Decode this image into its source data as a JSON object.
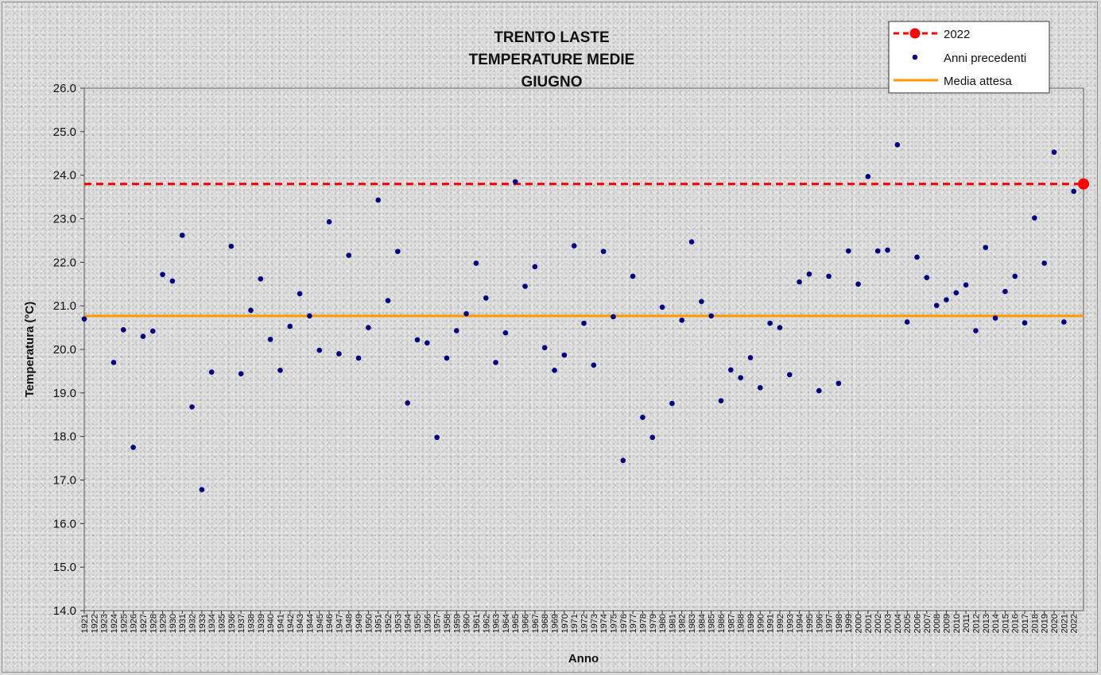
{
  "chart_data": {
    "type": "scatter",
    "title_lines": [
      "TRENTO LASTE",
      "TEMPERATURE MEDIE",
      "GIUGNO"
    ],
    "xlabel": "Anno",
    "ylabel": "Temperatura (°C)",
    "ylim": [
      14.0,
      26.0
    ],
    "y_ticks": [
      "14.0",
      "15.0",
      "16.0",
      "17.0",
      "18.0",
      "19.0",
      "20.0",
      "21.0",
      "22.0",
      "23.0",
      "24.0",
      "25.0",
      "26.0"
    ],
    "x_categories": [
      "1921",
      "1922",
      "1923",
      "1924",
      "1925",
      "1926",
      "1927",
      "1928",
      "1929",
      "1930",
      "1931",
      "1932",
      "1933",
      "1934",
      "1935",
      "1936",
      "1937",
      "1938",
      "1939",
      "1940",
      "1941",
      "1942",
      "1943",
      "1944",
      "1945",
      "1946",
      "1947",
      "1948",
      "1949",
      "1950",
      "1951",
      "1952",
      "1953",
      "1954",
      "1955",
      "1956",
      "1957",
      "1958",
      "1959",
      "1960",
      "1961",
      "1962",
      "1963",
      "1964",
      "1965",
      "1966",
      "1967",
      "1968",
      "1969",
      "1970",
      "1971",
      "1972",
      "1973",
      "1974",
      "1975",
      "1976",
      "1977",
      "1978",
      "1979",
      "1980",
      "1981",
      "1982",
      "1983",
      "1984",
      "1985",
      "1986",
      "1987",
      "1988",
      "1989",
      "1990",
      "1991",
      "1992",
      "1993",
      "1994",
      "1995",
      "1996",
      "1997",
      "1998",
      "1999",
      "2000",
      "2001",
      "2002",
      "2003",
      "2004",
      "2005",
      "2006",
      "2007",
      "2008",
      "2009",
      "2010",
      "2011",
      "2012",
      "2013",
      "2014",
      "2015",
      "2016",
      "2017",
      "2018",
      "2019",
      "2020",
      "2021",
      "2022"
    ],
    "grid": false,
    "legend_position": "top-right",
    "series": [
      {
        "name": "Anni precedenti",
        "color": "#000080",
        "points": [
          [
            1921,
            20.7
          ],
          [
            1924,
            19.7
          ],
          [
            1925,
            20.45
          ],
          [
            1926,
            17.75
          ],
          [
            1927,
            20.3
          ],
          [
            1928,
            20.42
          ],
          [
            1929,
            21.72
          ],
          [
            1930,
            21.57
          ],
          [
            1931,
            22.62
          ],
          [
            1932,
            18.68
          ],
          [
            1933,
            16.78
          ],
          [
            1934,
            19.48
          ],
          [
            1936,
            22.37
          ],
          [
            1937,
            19.44
          ],
          [
            1938,
            20.9
          ],
          [
            1939,
            21.62
          ],
          [
            1940,
            20.23
          ],
          [
            1941,
            19.52
          ],
          [
            1942,
            20.53
          ],
          [
            1943,
            21.28
          ],
          [
            1944,
            20.77
          ],
          [
            1945,
            19.98
          ],
          [
            1946,
            22.93
          ],
          [
            1947,
            19.9
          ],
          [
            1948,
            22.16
          ],
          [
            1949,
            19.8
          ],
          [
            1950,
            20.5
          ],
          [
            1951,
            23.43
          ],
          [
            1952,
            21.12
          ],
          [
            1953,
            22.25
          ],
          [
            1954,
            18.77
          ],
          [
            1955,
            20.22
          ],
          [
            1956,
            20.15
          ],
          [
            1957,
            17.98
          ],
          [
            1958,
            19.8
          ],
          [
            1959,
            20.43
          ],
          [
            1960,
            20.82
          ],
          [
            1961,
            21.98
          ],
          [
            1962,
            21.18
          ],
          [
            1963,
            19.7
          ],
          [
            1964,
            20.38
          ],
          [
            1965,
            23.85
          ],
          [
            1966,
            21.45
          ],
          [
            1967,
            21.9
          ],
          [
            1968,
            20.04
          ],
          [
            1969,
            19.52
          ],
          [
            1970,
            19.87
          ],
          [
            1971,
            22.38
          ],
          [
            1972,
            20.6
          ],
          [
            1973,
            19.64
          ],
          [
            1974,
            22.25
          ],
          [
            1975,
            20.75
          ],
          [
            1976,
            17.45
          ],
          [
            1977,
            21.68
          ],
          [
            1978,
            18.44
          ],
          [
            1979,
            17.98
          ],
          [
            1980,
            20.97
          ],
          [
            1981,
            18.76
          ],
          [
            1982,
            20.67
          ],
          [
            1983,
            22.47
          ],
          [
            1984,
            21.1
          ],
          [
            1985,
            20.77
          ],
          [
            1986,
            18.82
          ],
          [
            1987,
            19.53
          ],
          [
            1988,
            19.35
          ],
          [
            1989,
            19.81
          ],
          [
            1990,
            19.12
          ],
          [
            1991,
            20.6
          ],
          [
            1992,
            20.5
          ],
          [
            1993,
            19.42
          ],
          [
            1994,
            21.55
          ],
          [
            1995,
            21.73
          ],
          [
            1996,
            19.05
          ],
          [
            1997,
            21.68
          ],
          [
            1998,
            19.22
          ],
          [
            1999,
            22.26
          ],
          [
            2000,
            21.5
          ],
          [
            2001,
            23.97
          ],
          [
            2002,
            22.26
          ],
          [
            2003,
            22.28
          ],
          [
            2004,
            24.7
          ],
          [
            2005,
            20.63
          ],
          [
            2006,
            22.12
          ],
          [
            2007,
            21.65
          ],
          [
            2008,
            21.01
          ],
          [
            2009,
            21.14
          ],
          [
            2010,
            21.3
          ],
          [
            2011,
            21.48
          ],
          [
            2012,
            20.43
          ],
          [
            2013,
            22.34
          ],
          [
            2014,
            20.72
          ],
          [
            2015,
            21.33
          ],
          [
            2016,
            21.68
          ],
          [
            2017,
            20.61
          ],
          [
            2018,
            23.02
          ],
          [
            2019,
            21.98
          ],
          [
            2020,
            24.53
          ],
          [
            2021,
            20.63
          ],
          [
            2022,
            23.63
          ]
        ]
      },
      {
        "name": "2022",
        "color": "#ff0000",
        "points": [
          [
            2023,
            23.8
          ]
        ],
        "reference_line": 23.8
      },
      {
        "name": "Media attesa",
        "color": "#ff9900",
        "value": 20.77
      }
    ]
  },
  "legend": {
    "items": [
      {
        "label": "2022",
        "kind": "dashed-red-with-dot"
      },
      {
        "label": "Anni precedenti",
        "kind": "navy-dot"
      },
      {
        "label": "Media attesa",
        "kind": "orange-line"
      }
    ]
  }
}
